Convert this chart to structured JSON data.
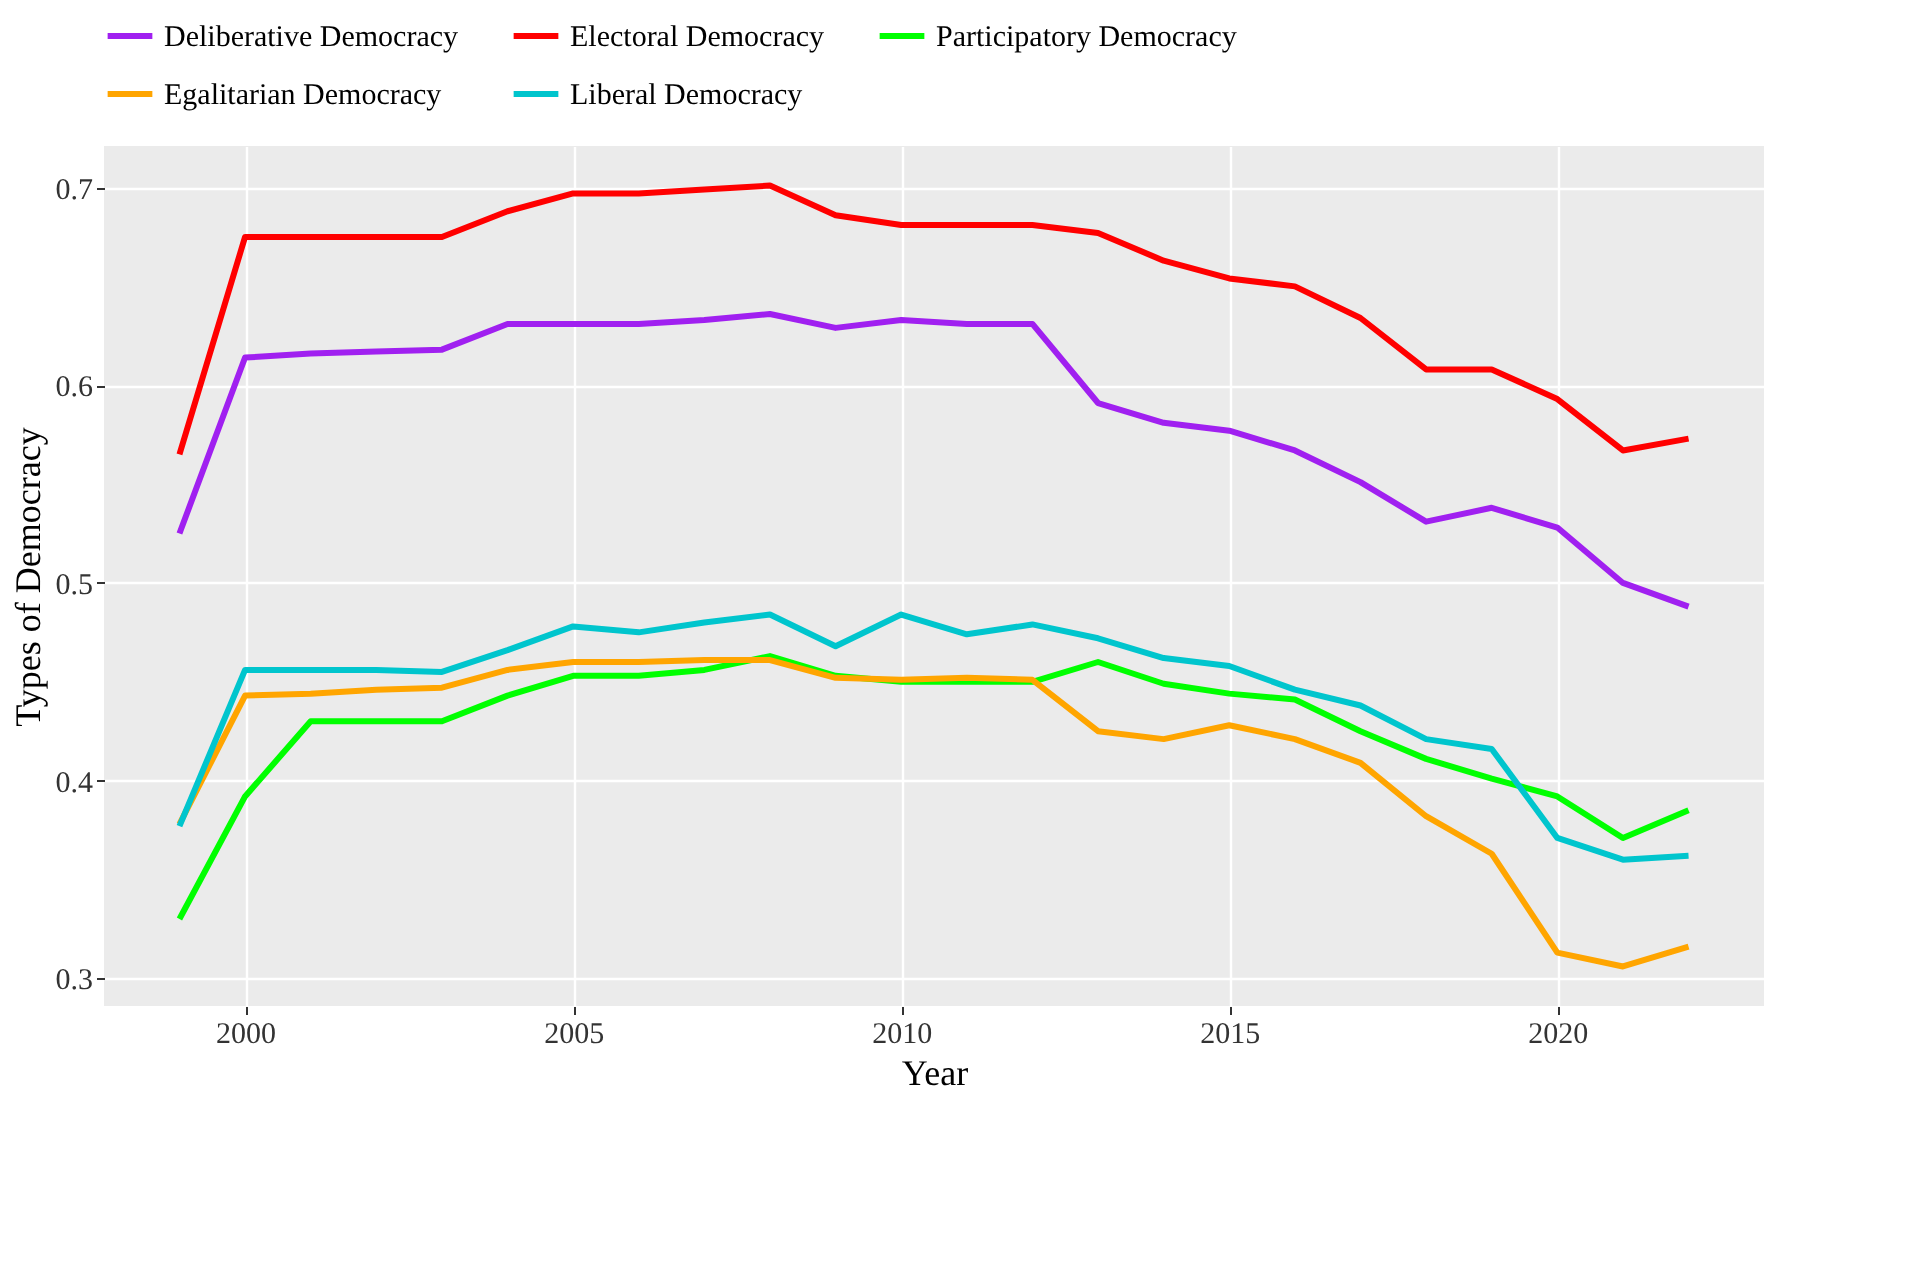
{
  "chart_data": {
    "type": "line",
    "xlabel": "Year",
    "ylabel": "Types of Democracy",
    "x": [
      1999,
      2000,
      2001,
      2002,
      2003,
      2004,
      2005,
      2006,
      2007,
      2008,
      2009,
      2010,
      2011,
      2012,
      2013,
      2014,
      2015,
      2016,
      2017,
      2018,
      2019,
      2020,
      2021,
      2022
    ],
    "xlim": [
      1997.85,
      2023.15
    ],
    "xticks": [
      2000,
      2005,
      2010,
      2015,
      2020
    ],
    "ylim": [
      0.286,
      0.721
    ],
    "yticks": [
      0.3,
      0.4,
      0.5,
      0.6,
      0.7
    ],
    "grid": true,
    "legend": "top",
    "marker": "none",
    "line_style": "solid",
    "series": [
      {
        "name": "Deliberative Democracy",
        "color": "#a020f0",
        "values": [
          0.525,
          0.614,
          0.616,
          0.617,
          0.618,
          0.631,
          0.631,
          0.631,
          0.633,
          0.636,
          0.629,
          0.633,
          0.631,
          0.631,
          0.591,
          0.581,
          0.577,
          0.567,
          0.551,
          0.531,
          0.538,
          0.528,
          0.5,
          0.488
        ]
      },
      {
        "name": "Electoral Democracy",
        "color": "#ff0000",
        "values": [
          0.565,
          0.675,
          0.675,
          0.675,
          0.675,
          0.688,
          0.697,
          0.697,
          0.699,
          0.701,
          0.686,
          0.681,
          0.681,
          0.681,
          0.677,
          0.663,
          0.654,
          0.65,
          0.634,
          0.608,
          0.608,
          0.593,
          0.567,
          0.573
        ]
      },
      {
        "name": "Participatory Democracy",
        "color": "#00ff00",
        "values": [
          0.33,
          0.392,
          0.43,
          0.43,
          0.43,
          0.443,
          0.453,
          0.453,
          0.456,
          0.463,
          0.453,
          0.45,
          0.45,
          0.45,
          0.46,
          0.449,
          0.444,
          0.441,
          0.425,
          0.411,
          0.401,
          0.392,
          0.371,
          0.385
        ]
      },
      {
        "name": "Egalitarian Democracy",
        "color": "#ffa500",
        "values": [
          0.378,
          0.443,
          0.444,
          0.446,
          0.447,
          0.456,
          0.46,
          0.46,
          0.461,
          0.461,
          0.452,
          0.451,
          0.452,
          0.451,
          0.425,
          0.421,
          0.428,
          0.421,
          0.409,
          0.382,
          0.363,
          0.313,
          0.306,
          0.316
        ]
      },
      {
        "name": "Liberal Democracy",
        "color": "#00c5cd",
        "values": [
          0.377,
          0.456,
          0.456,
          0.456,
          0.455,
          0.466,
          0.478,
          0.475,
          0.48,
          0.484,
          0.468,
          0.484,
          0.474,
          0.479,
          0.472,
          0.462,
          0.458,
          0.446,
          0.438,
          0.421,
          0.416,
          0.371,
          0.36,
          0.362
        ]
      }
    ]
  }
}
